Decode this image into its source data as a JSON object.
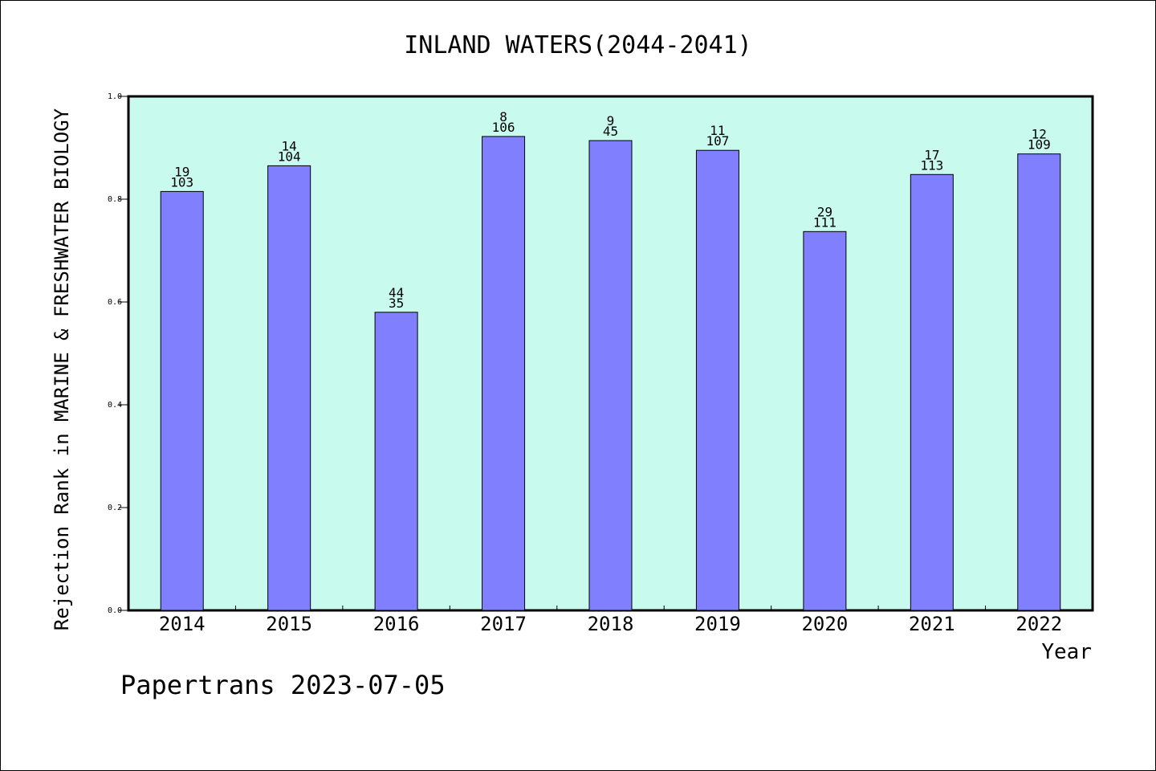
{
  "chart_data": {
    "type": "bar",
    "title": "INLAND WATERS(2044-2041)",
    "xlabel": "Year",
    "ylabel": "Rejection Rank in MARINE & FRESHWATER BIOLOGY",
    "categories": [
      "2014",
      "2015",
      "2016",
      "2017",
      "2018",
      "2019",
      "2020",
      "2021",
      "2022"
    ],
    "values": [
      0.815,
      0.865,
      0.58,
      0.922,
      0.914,
      0.895,
      0.737,
      0.848,
      0.888
    ],
    "rank_labels": [
      "19",
      "14",
      "44",
      "8",
      "9",
      "11",
      "29",
      "17",
      "12"
    ],
    "total_labels": [
      "103",
      "104",
      "35",
      "106",
      "45",
      "107",
      "111",
      "113",
      "109"
    ],
    "ylim": [
      0,
      1.0
    ],
    "yticks": [
      "0.0",
      "0.2",
      "0.4",
      "0.6",
      "0.8",
      "1.0"
    ],
    "grid": false,
    "legend": "none",
    "colors": {
      "bar": "#8080ff",
      "plot_background": "#c8faee",
      "axis": "#000000"
    }
  },
  "footer": "Papertrans 2023-07-05"
}
